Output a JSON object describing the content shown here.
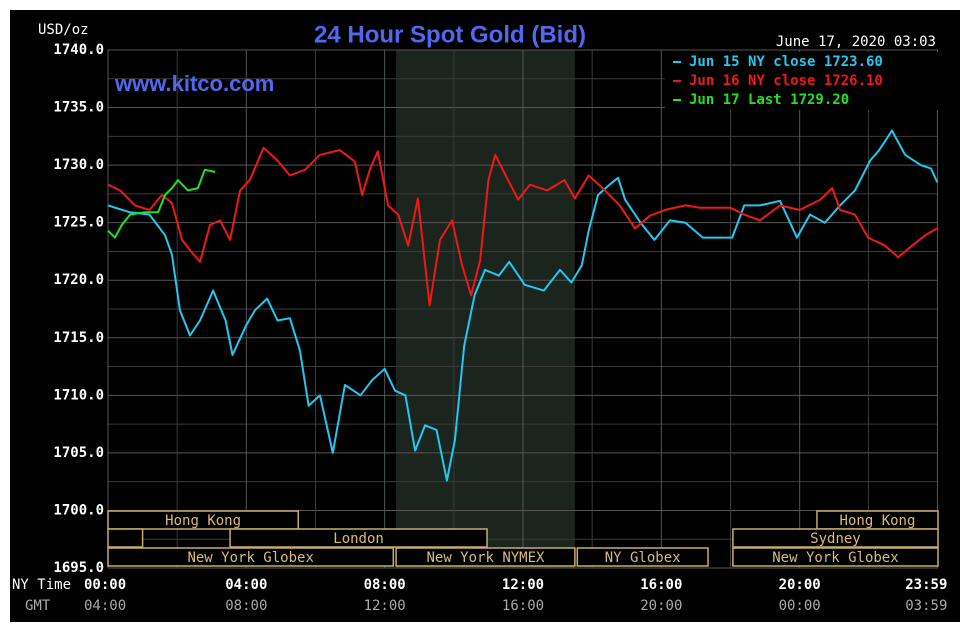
{
  "chart_data": {
    "type": "line",
    "title": "24 Hour Spot Gold (Bid)",
    "watermark": "www.kitco.com",
    "timestamp": "June 17, 2020 03:03",
    "y_label": "USD/oz",
    "x_label": "NY Time",
    "x2_label": "GMT",
    "xlim": [
      0,
      24
    ],
    "xticks": [
      {
        "value": 0,
        "label": "00:00"
      },
      {
        "value": 4,
        "label": "04:00"
      },
      {
        "value": 8,
        "label": "08:00"
      },
      {
        "value": 12,
        "label": "12:00"
      },
      {
        "value": 16,
        "label": "16:00"
      },
      {
        "value": 20,
        "label": "20:00"
      },
      {
        "value": 23.983,
        "label": "23:59"
      }
    ],
    "x2ticks": [
      "04:00",
      "08:00",
      "12:00",
      "16:00",
      "20:00",
      "00:00",
      "03:59"
    ],
    "ylim": [
      1695,
      1740
    ],
    "yticks": [
      {
        "value": 1695,
        "label": "1695.0"
      },
      {
        "value": 1700,
        "label": "1700.0"
      },
      {
        "value": 1705,
        "label": "1705.0"
      },
      {
        "value": 1710,
        "label": "1710.0"
      },
      {
        "value": 1715,
        "label": "1715.0"
      },
      {
        "value": 1720,
        "label": "1720.0"
      },
      {
        "value": 1725,
        "label": "1725.0"
      },
      {
        "value": 1730,
        "label": "1730.0"
      },
      {
        "value": 1735,
        "label": "1735.0"
      },
      {
        "value": 1740,
        "label": "1740.0"
      }
    ],
    "grid": true,
    "legend": "top-right",
    "highlight": {
      "start": 8.33,
      "end": 13.5,
      "color": "#1c241e"
    },
    "sessions": [
      {
        "name": "Hong Kong",
        "start": 0,
        "end": 5.5,
        "row": 0
      },
      {
        "name": "Hong Kong",
        "start": 20.5,
        "end": 24,
        "row": 0
      },
      {
        "start": 0,
        "end": 1,
        "row": 1
      },
      {
        "name": "London",
        "start": 3.53,
        "end": 10.96,
        "row": 1
      },
      {
        "name": "Sydney",
        "start": 18.07,
        "end": 24,
        "row": 1
      },
      {
        "name": "New York Globex",
        "start": 0,
        "end": 8.25,
        "row": 2
      },
      {
        "name": "New York NYMEX",
        "start": 8.33,
        "end": 13.5,
        "row": 2
      },
      {
        "name": "NY Globex",
        "start": 13.57,
        "end": 17.35,
        "row": 2
      },
      {
        "name": "New York Globex",
        "start": 18.07,
        "end": 24,
        "row": 2
      }
    ],
    "series": [
      {
        "name": "Jun 15 NY close 1723.60",
        "color": "#22c8f0",
        "x": [
          0,
          0.64,
          1.2,
          1.65,
          1.85,
          2.08,
          2.37,
          2.66,
          3.04,
          3.4,
          3.6,
          4.0,
          4.25,
          4.6,
          4.9,
          5.26,
          5.55,
          5.8,
          6.13,
          6.5,
          6.85,
          7.3,
          7.63,
          8.0,
          8.3,
          8.6,
          8.88,
          9.17,
          9.5,
          9.8,
          10.03,
          10.3,
          10.6,
          10.9,
          11.3,
          11.6,
          12.05,
          12.6,
          13.07,
          13.4,
          13.7,
          13.9,
          14.17,
          14.5,
          14.75,
          14.95,
          15.4,
          15.8,
          16.25,
          16.7,
          17.2,
          18.05,
          18.4,
          18.85,
          19.43,
          19.92,
          20.3,
          20.73,
          21.17,
          21.6,
          22.04,
          22.3,
          22.67,
          23.05,
          23.5,
          23.8,
          23.98
        ],
        "values": [
          1726.5,
          1725.9,
          1725.7,
          1723.9,
          1722.2,
          1717.4,
          1715.2,
          1716.5,
          1719.1,
          1716.5,
          1713.5,
          1716.1,
          1717.4,
          1718.4,
          1716.5,
          1716.7,
          1713.9,
          1709.1,
          1710.0,
          1705.0,
          1710.9,
          1710.0,
          1711.3,
          1712.3,
          1710.4,
          1710.0,
          1705.2,
          1707.4,
          1707.0,
          1702.6,
          1706.1,
          1714.3,
          1718.7,
          1720.9,
          1720.4,
          1721.6,
          1719.6,
          1719.1,
          1720.9,
          1719.8,
          1721.3,
          1724.3,
          1727.4,
          1728.3,
          1728.9,
          1727.0,
          1725.0,
          1723.5,
          1725.2,
          1725.0,
          1723.7,
          1723.7,
          1726.5,
          1726.5,
          1726.9,
          1723.7,
          1725.7,
          1725.0,
          1726.5,
          1727.8,
          1730.4,
          1731.3,
          1733.0,
          1730.9,
          1730.0,
          1729.7,
          1728.5
        ]
      },
      {
        "name": "Jun 16 NY close 1726.10",
        "color": "#f01818",
        "x": [
          0,
          0.35,
          0.78,
          1.2,
          1.56,
          1.85,
          2.14,
          2.43,
          2.66,
          2.95,
          3.24,
          3.53,
          3.82,
          4.1,
          4.5,
          4.9,
          5.26,
          5.7,
          6.13,
          6.7,
          7.14,
          7.35,
          7.57,
          7.8,
          8.1,
          8.39,
          8.68,
          8.96,
          9.3,
          9.6,
          9.95,
          10.24,
          10.5,
          10.76,
          11.0,
          11.2,
          11.5,
          11.86,
          12.2,
          12.7,
          13.2,
          13.5,
          13.9,
          14.37,
          14.8,
          15.24,
          15.67,
          16.1,
          16.7,
          17.1,
          17.99,
          18.4,
          18.85,
          19.43,
          20.0,
          20.6,
          20.94,
          21.17,
          21.6,
          21.98,
          22.47,
          22.85,
          23.25,
          23.63,
          23.98
        ],
        "values": [
          1728.3,
          1727.8,
          1726.5,
          1726.1,
          1727.4,
          1726.7,
          1723.5,
          1722.4,
          1721.6,
          1724.8,
          1725.2,
          1723.5,
          1727.8,
          1728.7,
          1731.5,
          1730.4,
          1729.1,
          1729.6,
          1730.9,
          1731.3,
          1730.3,
          1727.4,
          1729.6,
          1731.2,
          1726.5,
          1725.7,
          1723.0,
          1727.1,
          1717.8,
          1723.5,
          1725.2,
          1721.3,
          1718.7,
          1721.7,
          1728.7,
          1730.9,
          1729.1,
          1727.0,
          1728.3,
          1727.8,
          1728.7,
          1727.1,
          1729.1,
          1727.8,
          1726.5,
          1724.5,
          1725.6,
          1726.1,
          1726.5,
          1726.3,
          1726.3,
          1725.7,
          1725.2,
          1726.5,
          1726.1,
          1727.0,
          1728.0,
          1726.1,
          1725.7,
          1723.7,
          1723.0,
          1722.0,
          1723.0,
          1723.9,
          1724.5
        ]
      },
      {
        "name": "Jun 17 Last 1729.20",
        "color": "#22e022",
        "x": [
          0,
          0.2,
          0.4,
          0.64,
          1.07,
          1.45,
          1.65,
          1.85,
          2.02,
          2.31,
          2.6,
          2.8,
          3.1
        ],
        "values": [
          1724.3,
          1723.7,
          1724.8,
          1725.7,
          1725.9,
          1725.9,
          1727.4,
          1728.0,
          1728.7,
          1727.8,
          1728.0,
          1729.6,
          1729.4
        ]
      }
    ]
  }
}
